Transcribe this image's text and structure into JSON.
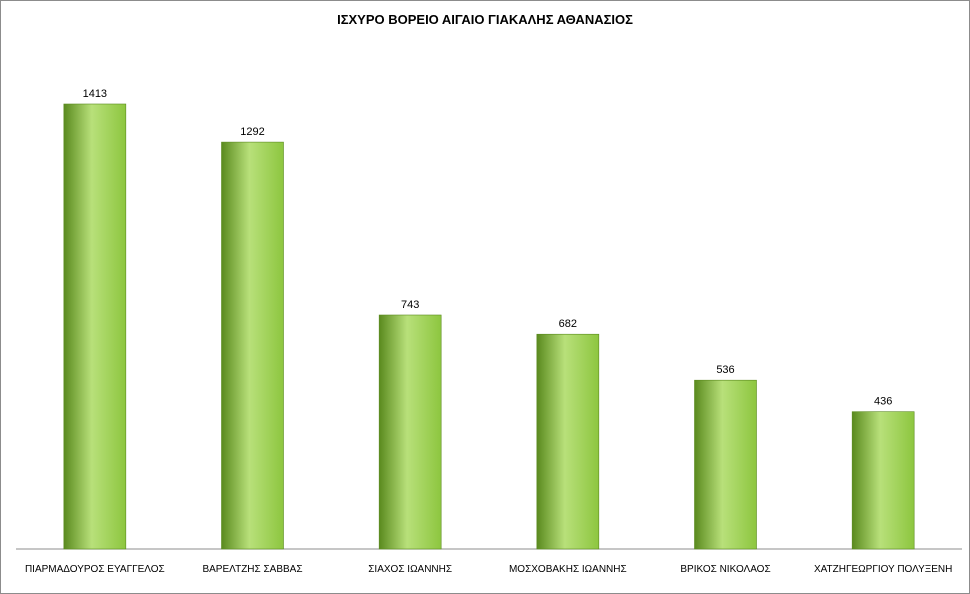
{
  "chart_data": {
    "type": "bar",
    "title": "ΙΣΧΥΡΟ ΒΟΡΕΙΟ ΑΙΓΑΙΟ ΓΙΑΚΑΛΗΣ ΑΘΑΝΑΣΙΟΣ",
    "categories": [
      "ΠΙΑΡΜΑΔΟΥΡΟΣ ΕΥΑΓΓΕΛΟΣ",
      "ΒΑΡΕΛΤΖΗΣ ΣΑΒΒΑΣ",
      "ΣΙΑΧΟΣ ΙΩΑΝΝΗΣ",
      "ΜΟΣΧΟΒΑΚΗΣ ΙΩΑΝΝΗΣ",
      "ΒΡΙΚΟΣ ΝΙΚΟΛΑΟΣ",
      "ΧΑΤΖΗΓΕΩΡΓΙΟΥ ΠΟΛΥΞΕΝΗ"
    ],
    "values": [
      1413,
      1292,
      743,
      682,
      536,
      436
    ],
    "xlabel": "",
    "ylabel": "",
    "ylim": [
      0,
      1413
    ],
    "grid": false,
    "legend": "none",
    "bar_color": "#8dc63f",
    "bar_color_light": "#b8e07a",
    "bar_color_dark": "#5a8a1e"
  }
}
